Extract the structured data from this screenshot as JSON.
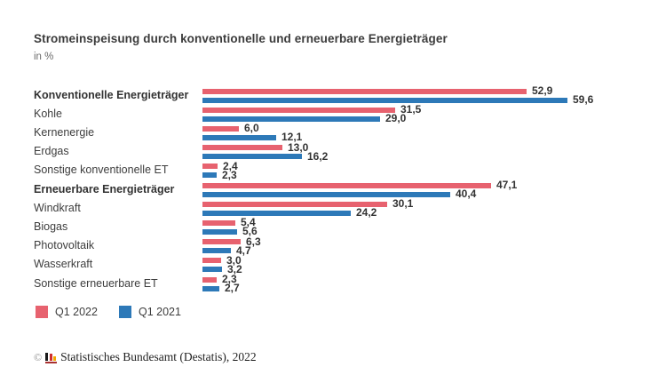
{
  "header": {
    "title": "Stromeinspeisung durch konventionelle und erneuerbare Energieträger",
    "subtitle": "in %"
  },
  "chart_data": {
    "type": "bar",
    "orientation": "horizontal",
    "title": "Stromeinspeisung durch konventionelle und erneuerbare Energieträger",
    "subtitle": "in %",
    "unit": "%",
    "xlim": [
      0,
      60
    ],
    "grid": false,
    "value_labels": true,
    "decimal_separator": ",",
    "legend_position": "bottom",
    "categories": [
      "Konventionelle Energieträger",
      "Kohle",
      "Kernenergie",
      "Erdgas",
      "Sonstige konventionelle ET",
      "Erneuerbare Energieträger",
      "Windkraft",
      "Biogas",
      "Photovoltaik",
      "Wasserkraft",
      "Sonstige erneuerbare ET"
    ],
    "bold_categories": [
      "Konventionelle Energieträger",
      "Erneuerbare Energieträger"
    ],
    "series": [
      {
        "name": "Q1 2022",
        "color": "#e7626f",
        "values": [
          52.9,
          31.5,
          6.0,
          13.0,
          2.4,
          47.1,
          30.1,
          5.4,
          6.3,
          3.0,
          2.3
        ]
      },
      {
        "name": "Q1 2021",
        "color": "#2d79b8",
        "values": [
          59.6,
          29.0,
          12.1,
          16.2,
          2.3,
          40.4,
          24.2,
          5.6,
          4.7,
          3.2,
          2.7
        ]
      }
    ]
  },
  "legend": {
    "items": [
      {
        "label": "Q1 2022",
        "color": "#e7626f"
      },
      {
        "label": "Q1 2021",
        "color": "#2d79b8"
      }
    ]
  },
  "footer": {
    "copyright_symbol": "©",
    "logo": "destatis-logo",
    "text": "Statistisches Bundesamt (Destatis), 2022"
  }
}
